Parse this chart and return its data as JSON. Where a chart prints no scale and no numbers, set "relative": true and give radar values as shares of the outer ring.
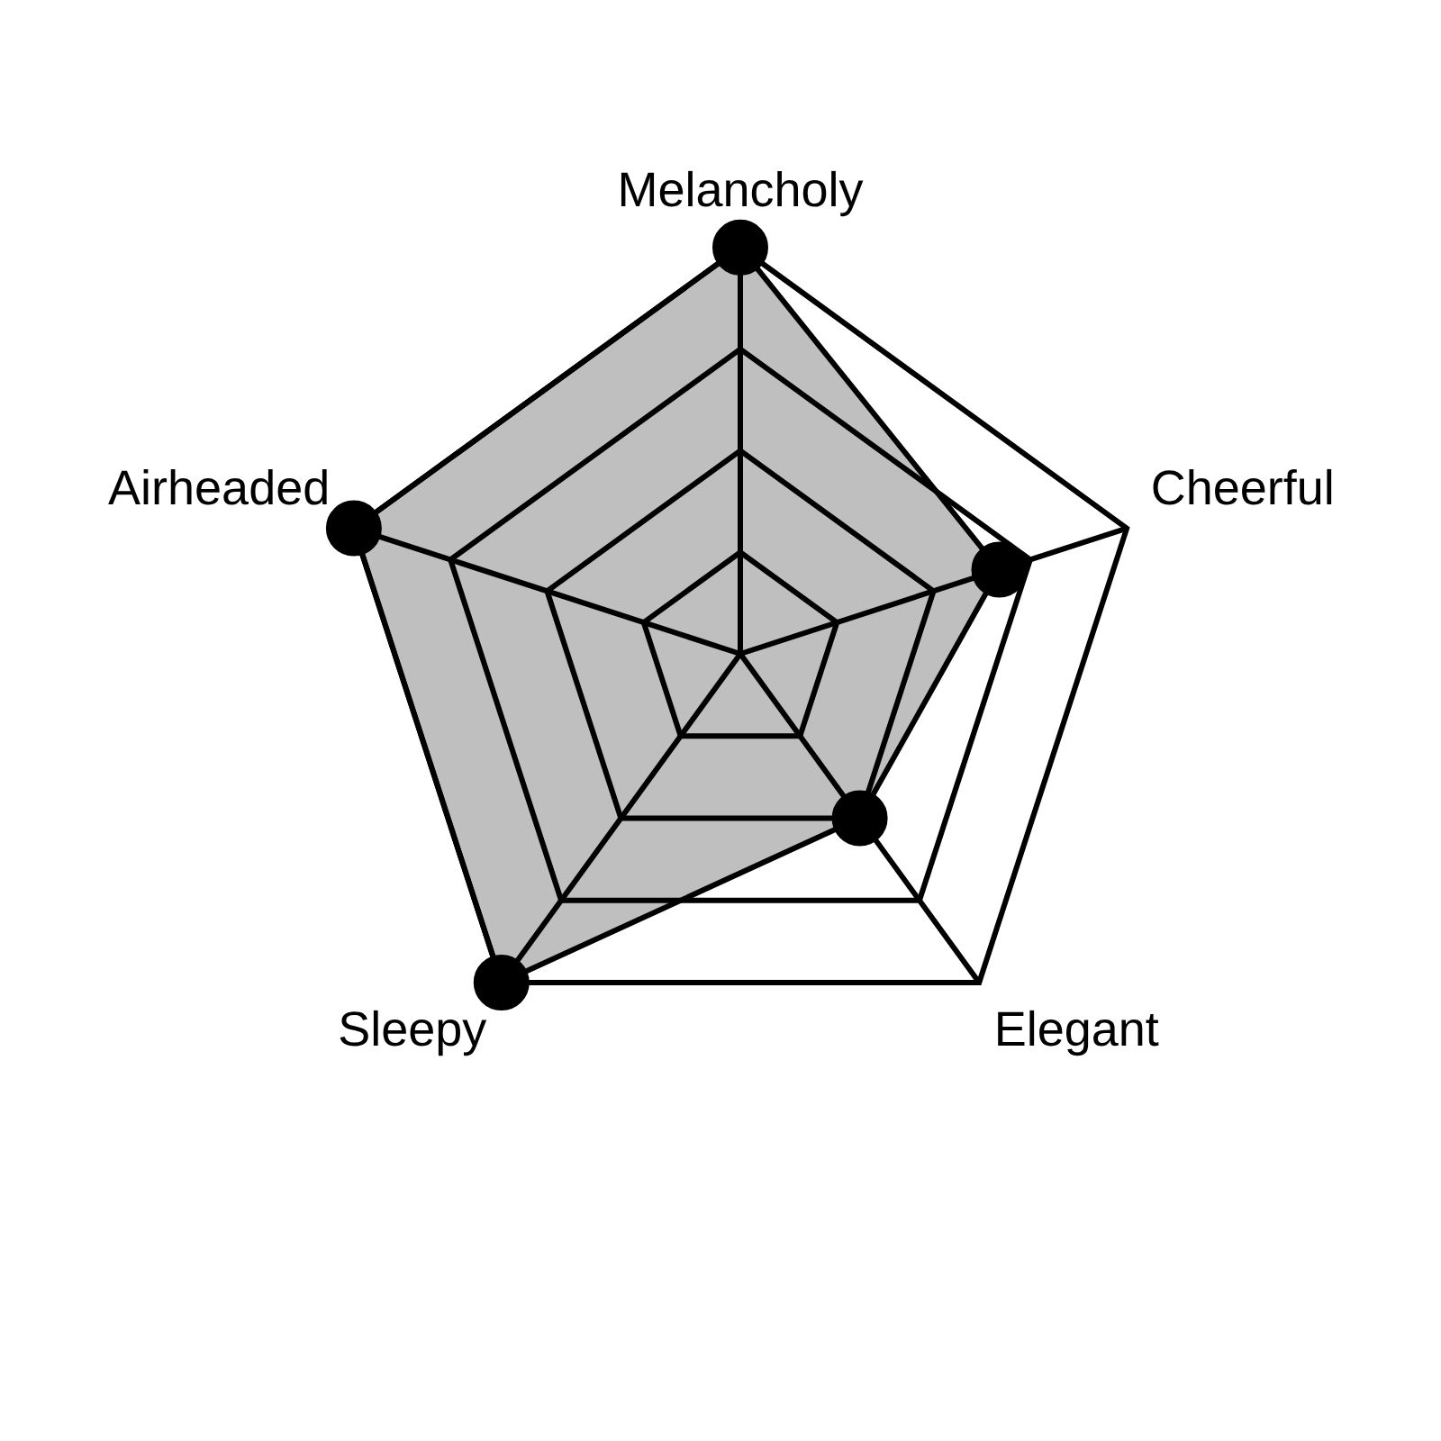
{
  "chart_data": {
    "type": "radar",
    "relative": true,
    "categories": [
      "Melancholy",
      "Cheerful",
      "Elegant",
      "Sleepy",
      "Airheaded"
    ],
    "series": [
      {
        "color": "#000000",
        "values": [
          1,
          0.67,
          0.5,
          1,
          1
        ]
      }
    ],
    "grid": true,
    "marker": "circle"
  }
}
